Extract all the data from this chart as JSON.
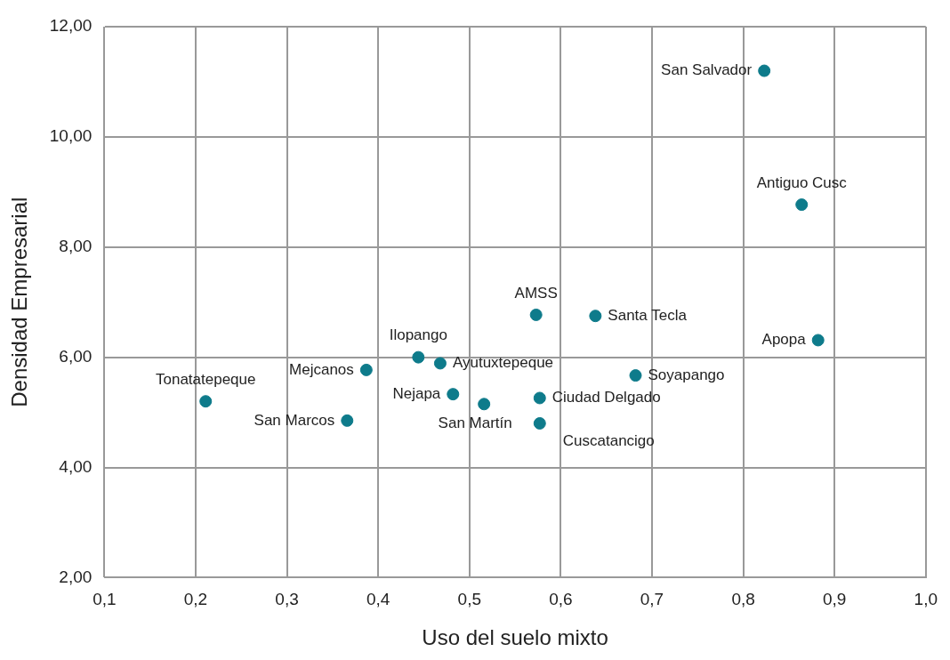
{
  "chart_data": {
    "type": "scatter",
    "xlabel": "Uso del suelo mixto",
    "ylabel": "Densidad Empresarial",
    "x": [
      0.823,
      0.864,
      0.573,
      0.638,
      0.882,
      0.444,
      0.468,
      0.387,
      0.682,
      0.482,
      0.577,
      0.516,
      0.211,
      0.366,
      0.577
    ],
    "values": [
      11.2,
      8.77,
      6.77,
      6.75,
      6.31,
      6.0,
      5.89,
      5.77,
      5.67,
      5.33,
      5.26,
      5.15,
      5.2,
      4.85,
      4.8
    ],
    "color": "#0e7b8b",
    "marker": "circle",
    "grid": true,
    "xlim": [
      0.1,
      1.0
    ],
    "xticks": [
      {
        "value": 0.1,
        "label": "0,1"
      },
      {
        "value": 0.2,
        "label": "0,2"
      },
      {
        "value": 0.3,
        "label": "0,3"
      },
      {
        "value": 0.4,
        "label": "0,4"
      },
      {
        "value": 0.5,
        "label": "0,5"
      },
      {
        "value": 0.6,
        "label": "0,6"
      },
      {
        "value": 0.7,
        "label": "0,7"
      },
      {
        "value": 0.8,
        "label": "0,8"
      },
      {
        "value": 0.9,
        "label": "0,9"
      },
      {
        "value": 1.0,
        "label": "1,0"
      }
    ],
    "ylim": [
      2,
      12
    ],
    "yticks": [
      {
        "value": 2,
        "label": "2,00"
      },
      {
        "value": 4,
        "label": "4,00"
      },
      {
        "value": 6,
        "label": "6,00"
      },
      {
        "value": 8,
        "label": "8,00"
      },
      {
        "value": 10,
        "label": "10,00"
      },
      {
        "value": 12,
        "label": "12,00"
      }
    ],
    "annotations": [
      {
        "text": "San Salvador",
        "x": 0.823,
        "y": 11.2
      },
      {
        "text": "Antiguo Cusc",
        "x": 0.864,
        "y": 8.77
      },
      {
        "text": "AMSS",
        "x": 0.573,
        "y": 6.77
      },
      {
        "text": "Santa Tecla",
        "x": 0.638,
        "y": 6.75
      },
      {
        "text": "Apopa",
        "x": 0.882,
        "y": 6.31
      },
      {
        "text": "Ilopango",
        "x": 0.444,
        "y": 6.0
      },
      {
        "text": "Ayutuxtepeque",
        "x": 0.468,
        "y": 5.89
      },
      {
        "text": "Mejcanos",
        "x": 0.387,
        "y": 5.77
      },
      {
        "text": "Soyapango",
        "x": 0.682,
        "y": 5.67
      },
      {
        "text": "Nejapa",
        "x": 0.482,
        "y": 5.33
      },
      {
        "text": "Ciudad Delgado",
        "x": 0.577,
        "y": 5.26
      },
      {
        "text": "San Martín",
        "x": 0.516,
        "y": 5.15
      },
      {
        "text": "Tonatatepeque",
        "x": 0.211,
        "y": 5.2
      },
      {
        "text": "San Marcos",
        "x": 0.366,
        "y": 4.85
      },
      {
        "text": "Cuscatancigo",
        "x": 0.577,
        "y": 4.8
      }
    ]
  }
}
